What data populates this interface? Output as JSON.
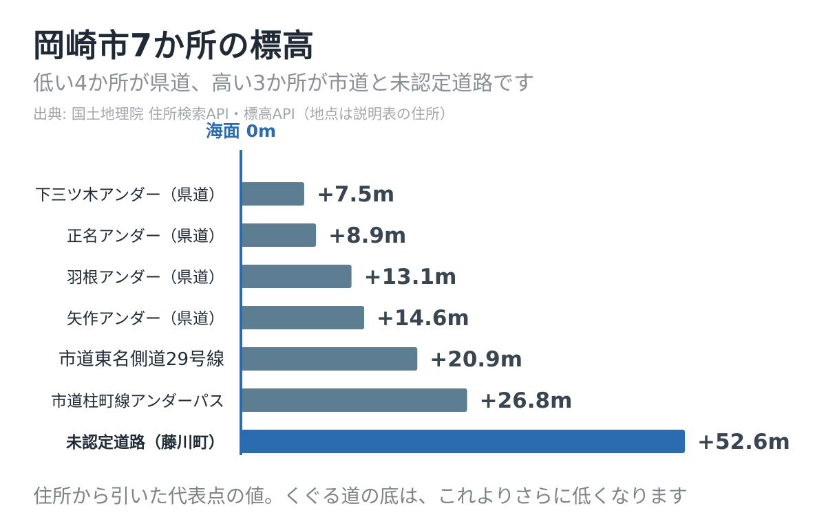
{
  "header": {
    "title": "岡崎市7か所の標高",
    "subtitle": "低い4か所が県道、高い3か所が市道と未認定道路です",
    "source": "出典: 国土地理院 住所検索API・標高API（地点は説明表の住所）"
  },
  "footnote": "住所から引いた代表点の値。くぐる道の底は、これよりさらに低くなります",
  "chart_data": {
    "type": "bar",
    "orientation": "horizontal",
    "baseline_label": "海面 0m",
    "categories": [
      "下三ツ木アンダー（県道）",
      "正名アンダー（県道）",
      "羽根アンダー（県道）",
      "矢作アンダー（県道）",
      "市道東名側道29号線",
      "市道柱町線アンダーパス",
      "未認定道路（藤川町）"
    ],
    "values": [
      7.5,
      8.9,
      13.1,
      14.6,
      20.9,
      26.8,
      52.6
    ],
    "value_labels": [
      "+7.5m",
      "+8.9m",
      "+13.1m",
      "+14.6m",
      "+20.9m",
      "+26.8m",
      "+52.6m"
    ],
    "highlight_index": 6,
    "xlim": [
      0,
      52.6
    ],
    "unit": "m",
    "colors": {
      "bar": "#5d7d93",
      "highlight": "#2b6cb0",
      "axis": "#2b6cb0",
      "label": "#1f2a36",
      "value_label": "#3a4552"
    }
  }
}
